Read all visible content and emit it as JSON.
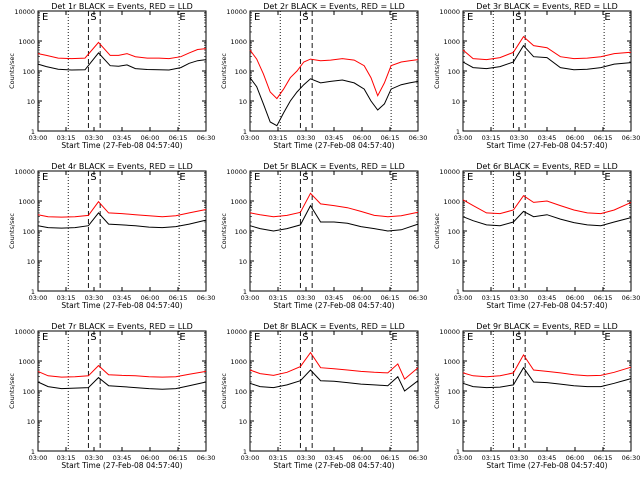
{
  "figure": {
    "x_axis_label": "Start Time (27-Feb-08 04:57:40)",
    "y_axis_label": "Counts/sec",
    "y_ticks": [
      "10000",
      "1000",
      "100",
      "10",
      "1"
    ],
    "x_ticks": [
      "03:00",
      "03:15",
      "03:30",
      "03:45",
      "06:00",
      "06:15",
      "06:30"
    ],
    "series_colors": {
      "events": "#000000",
      "lld": "#ff0000"
    },
    "flare_marks": {
      "start": "S",
      "end": "E"
    }
  },
  "chart_data": [
    {
      "type": "line",
      "title": "Det 1r BLACK = Events, RED = LLD",
      "xlabel": "Start Time (27-Feb-08 04:57:40)",
      "ylabel": "Counts/sec",
      "ylim": [
        1,
        10000
      ],
      "yscale": "log",
      "x": [
        0,
        0.05,
        0.12,
        0.2,
        0.28,
        0.36,
        0.43,
        0.48,
        0.53,
        0.58,
        0.65,
        0.72,
        0.78,
        0.85,
        0.9,
        0.95,
        1.0
      ],
      "series": [
        {
          "name": "LLD",
          "values": [
            380,
            330,
            270,
            260,
            270,
            900,
            330,
            330,
            380,
            300,
            270,
            270,
            260,
            300,
            400,
            520,
            560
          ]
        },
        {
          "name": "Events",
          "values": [
            170,
            140,
            115,
            108,
            110,
            400,
            150,
            145,
            160,
            120,
            112,
            110,
            108,
            130,
            180,
            220,
            240
          ]
        }
      ]
    },
    {
      "type": "line",
      "title": "Det 2r BLACK = Events, RED = LLD",
      "xlabel": "Start Time (27-Feb-08 04:57:40)",
      "ylabel": "Counts/sec",
      "ylim": [
        1,
        10000
      ],
      "yscale": "log",
      "x": [
        0,
        0.04,
        0.08,
        0.12,
        0.16,
        0.2,
        0.24,
        0.28,
        0.32,
        0.36,
        0.42,
        0.48,
        0.55,
        0.62,
        0.68,
        0.72,
        0.76,
        0.8,
        0.84,
        0.9,
        0.95,
        1.0
      ],
      "series": [
        {
          "name": "LLD",
          "values": [
            500,
            250,
            80,
            20,
            12,
            25,
            60,
            100,
            200,
            250,
            220,
            230,
            260,
            230,
            150,
            60,
            15,
            40,
            150,
            200,
            220,
            240
          ]
        },
        {
          "name": "Events",
          "values": [
            60,
            30,
            8,
            2,
            1.5,
            4,
            10,
            20,
            35,
            55,
            40,
            45,
            50,
            40,
            25,
            10,
            5,
            8,
            25,
            35,
            40,
            45
          ]
        }
      ]
    },
    {
      "type": "line",
      "title": "Det 3r BLACK = Events, RED = LLD",
      "xlabel": "Start Time (27-Feb-08 04:57:40)",
      "ylabel": "Counts/sec",
      "ylim": [
        1,
        10000
      ],
      "yscale": "log",
      "x": [
        0,
        0.06,
        0.14,
        0.22,
        0.3,
        0.36,
        0.42,
        0.5,
        0.58,
        0.66,
        0.74,
        0.82,
        0.9,
        1.0
      ],
      "series": [
        {
          "name": "LLD",
          "values": [
            500,
            260,
            240,
            280,
            420,
            1400,
            700,
            600,
            300,
            260,
            270,
            300,
            380,
            420
          ]
        },
        {
          "name": "Events",
          "values": [
            200,
            130,
            120,
            140,
            200,
            700,
            300,
            280,
            130,
            110,
            115,
            130,
            170,
            190
          ]
        }
      ]
    },
    {
      "type": "line",
      "title": "Det 4r BLACK = Events, RED = LLD",
      "xlabel": "Start Time (27-Feb-08 04:57:40)",
      "ylabel": "Counts/sec",
      "ylim": [
        1,
        10000
      ],
      "yscale": "log",
      "x": [
        0,
        0.06,
        0.14,
        0.22,
        0.3,
        0.36,
        0.42,
        0.5,
        0.58,
        0.66,
        0.74,
        0.82,
        0.9,
        1.0
      ],
      "series": [
        {
          "name": "LLD",
          "values": [
            350,
            300,
            290,
            300,
            330,
            950,
            400,
            380,
            350,
            320,
            300,
            320,
            400,
            520
          ]
        },
        {
          "name": "Events",
          "values": [
            150,
            130,
            125,
            130,
            150,
            400,
            170,
            160,
            150,
            135,
            130,
            140,
            170,
            230
          ]
        }
      ]
    },
    {
      "type": "line",
      "title": "Det 5r BLACK = Events, RED = LLD",
      "xlabel": "Start Time (27-Feb-08 04:57:40)",
      "ylabel": "Counts/sec",
      "ylim": [
        1,
        10000
      ],
      "yscale": "log",
      "x": [
        0,
        0.06,
        0.14,
        0.22,
        0.3,
        0.36,
        0.42,
        0.5,
        0.58,
        0.66,
        0.74,
        0.82,
        0.9,
        1.0
      ],
      "series": [
        {
          "name": "LLD",
          "values": [
            400,
            350,
            300,
            330,
            420,
            1800,
            800,
            700,
            600,
            450,
            330,
            300,
            320,
            420
          ]
        },
        {
          "name": "Events",
          "values": [
            150,
            120,
            100,
            120,
            160,
            700,
            200,
            200,
            180,
            140,
            120,
            100,
            110,
            170
          ]
        }
      ]
    },
    {
      "type": "line",
      "title": "Det 6r BLACK = Events, RED = LLD",
      "xlabel": "Start Time (27-Feb-08 04:57:40)",
      "ylabel": "Counts/sec",
      "ylim": [
        1,
        10000
      ],
      "yscale": "log",
      "x": [
        0,
        0.06,
        0.14,
        0.22,
        0.3,
        0.36,
        0.42,
        0.5,
        0.58,
        0.66,
        0.74,
        0.82,
        0.9,
        1.0
      ],
      "series": [
        {
          "name": "LLD",
          "values": [
            1100,
            700,
            400,
            380,
            500,
            1500,
            900,
            1000,
            700,
            500,
            400,
            380,
            500,
            900
          ]
        },
        {
          "name": "Events",
          "values": [
            300,
            220,
            160,
            150,
            200,
            450,
            300,
            350,
            250,
            190,
            160,
            150,
            200,
            280
          ]
        }
      ]
    },
    {
      "type": "line",
      "title": "Det 7r BLACK = Events, RED = LLD",
      "xlabel": "Start Time (27-Feb-08 04:57:40)",
      "ylabel": "Counts/sec",
      "ylim": [
        1,
        10000
      ],
      "yscale": "log",
      "x": [
        0,
        0.06,
        0.14,
        0.22,
        0.3,
        0.36,
        0.42,
        0.5,
        0.58,
        0.66,
        0.74,
        0.82,
        0.9,
        1.0
      ],
      "series": [
        {
          "name": "LLD",
          "values": [
            450,
            320,
            290,
            300,
            320,
            700,
            350,
            330,
            320,
            300,
            290,
            300,
            360,
            450
          ]
        },
        {
          "name": "Events",
          "values": [
            200,
            140,
            120,
            125,
            130,
            280,
            150,
            140,
            130,
            120,
            115,
            120,
            150,
            200
          ]
        }
      ]
    },
    {
      "type": "line",
      "title": "Det 8r BLACK = Events, RED = LLD",
      "xlabel": "Start Time (27-Feb-08 04:57:40)",
      "ylabel": "Counts/sec",
      "ylim": [
        1,
        10000
      ],
      "yscale": "log",
      "x": [
        0,
        0.06,
        0.14,
        0.22,
        0.3,
        0.36,
        0.42,
        0.5,
        0.58,
        0.66,
        0.74,
        0.82,
        0.88,
        0.92,
        1.0
      ],
      "series": [
        {
          "name": "LLD",
          "values": [
            500,
            380,
            330,
            420,
            650,
            1900,
            600,
            550,
            500,
            450,
            420,
            400,
            800,
            250,
            600
          ]
        },
        {
          "name": "Events",
          "values": [
            180,
            140,
            130,
            160,
            220,
            500,
            220,
            210,
            190,
            170,
            160,
            150,
            300,
            100,
            220
          ]
        }
      ]
    },
    {
      "type": "line",
      "title": "Det 9r BLACK = Events, RED = LLD",
      "xlabel": "Start Time (27-Feb-08 04:57:40)",
      "ylabel": "Counts/sec",
      "ylim": [
        1,
        10000
      ],
      "yscale": "log",
      "x": [
        0,
        0.06,
        0.14,
        0.22,
        0.3,
        0.36,
        0.42,
        0.5,
        0.58,
        0.66,
        0.74,
        0.82,
        0.9,
        1.0
      ],
      "series": [
        {
          "name": "LLD",
          "values": [
            400,
            320,
            300,
            320,
            400,
            1600,
            500,
            450,
            400,
            350,
            320,
            330,
            420,
            620
          ]
        },
        {
          "name": "Events",
          "values": [
            180,
            140,
            130,
            135,
            160,
            600,
            200,
            190,
            170,
            150,
            140,
            140,
            180,
            260
          ]
        }
      ]
    }
  ]
}
